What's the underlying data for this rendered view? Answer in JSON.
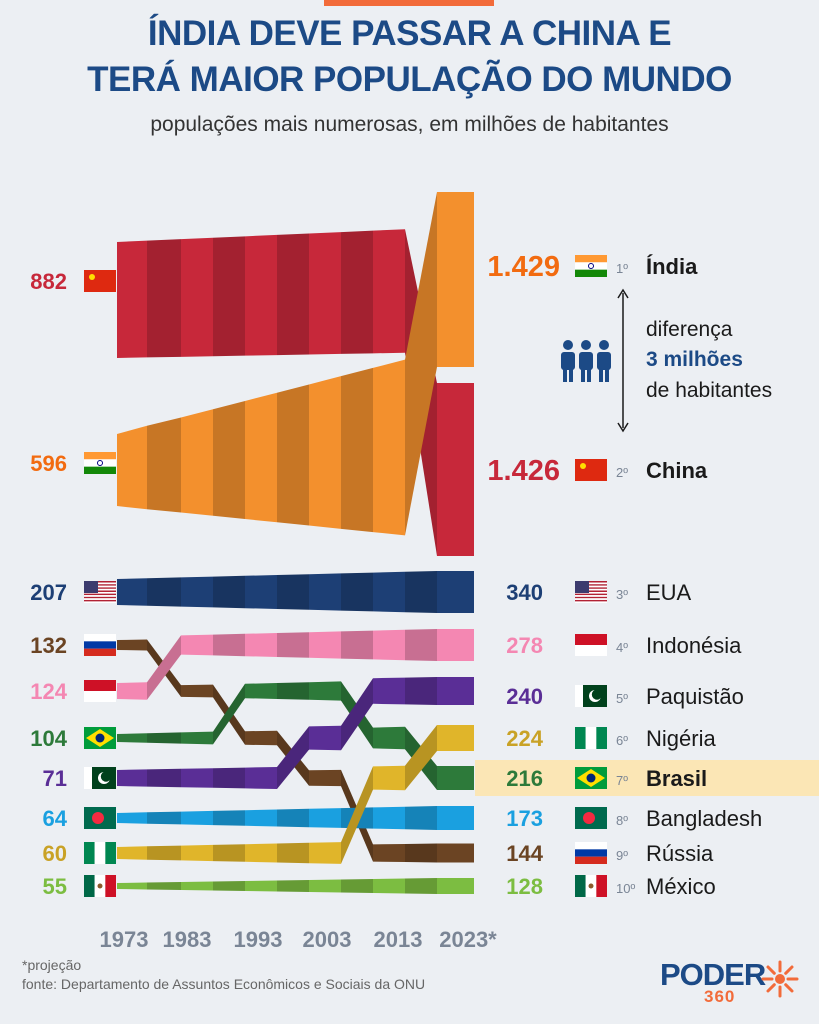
{
  "title_line1": "ÍNDIA DEVE PASSAR A CHINA E",
  "title_line2": "TERÁ MAIOR POPULAÇÃO DO MUNDO",
  "subtitle": "populações mais numerosas, em milhões de habitantes",
  "annotation": {
    "line1": "diferença",
    "line2": "3 milhões",
    "line3": "de habitantes"
  },
  "footnote": "*projeção",
  "source": "fonte: Departamento de Assuntos Econômicos e Sociais da ONU",
  "logo": {
    "word": "PODER",
    "number": "360"
  },
  "chart_data": {
    "type": "bump",
    "x": [
      "1973",
      "1983",
      "1993",
      "2003",
      "2013",
      "2023*"
    ],
    "units": "milhões de habitantes",
    "highlight": "Brasil",
    "series": [
      {
        "name": "China",
        "color": "#c7283a",
        "flag": "china",
        "start_label": "882",
        "end_label": "1.426",
        "rank_label": "2º",
        "ranks": [
          1,
          1,
          1,
          1,
          1,
          2
        ],
        "start": 882,
        "end": 1426
      },
      {
        "name": "Índia",
        "color": "#f3902d",
        "flag": "india",
        "start_label": "596",
        "end_label": "1.429",
        "rank_label": "1º",
        "ranks": [
          2,
          2,
          2,
          2,
          2,
          1
        ],
        "start": 596,
        "end": 1429
      },
      {
        "name": "EUA",
        "color": "#1d3f75",
        "flag": "usa",
        "start_label": "207",
        "end_label": "340",
        "rank_label": "3º",
        "ranks": [
          3,
          3,
          3,
          3,
          3,
          3
        ],
        "start": 207,
        "end": 340
      },
      {
        "name": "Rússia",
        "color": "#6b4423",
        "flag": "russia",
        "start_label": "132",
        "end_label": "144",
        "rank_label": "9º",
        "ranks": [
          4,
          5,
          6,
          7,
          9,
          9
        ],
        "start": 132,
        "end": 144
      },
      {
        "name": "Indonésia",
        "color": "#f487b2",
        "flag": "indonesia",
        "start_label": "124",
        "end_label": "278",
        "rank_label": "4º",
        "ranks": [
          5,
          4,
          4,
          4,
          4,
          4
        ],
        "start": 124,
        "end": 278
      },
      {
        "name": "Brasil",
        "color": "#2d7a3a",
        "flag": "brazil",
        "start_label": "104",
        "end_label": "216",
        "rank_label": "7º",
        "ranks": [
          6,
          6,
          5,
          5,
          6,
          7
        ],
        "start": 104,
        "end": 216
      },
      {
        "name": "Paquistão",
        "color": "#5a2e96",
        "flag": "pakistan",
        "start_label": "71",
        "end_label": "240",
        "rank_label": "5º",
        "ranks": [
          7,
          7,
          7,
          6,
          5,
          5
        ],
        "start": 71,
        "end": 240
      },
      {
        "name": "Bangladesh",
        "color": "#1aa0e0",
        "flag": "bangladesh",
        "start_label": "64",
        "end_label": "173",
        "rank_label": "8º",
        "ranks": [
          8,
          8,
          8,
          8,
          8,
          8
        ],
        "start": 64,
        "end": 173
      },
      {
        "name": "Nigéria",
        "color": "#e0b52a",
        "flag": "nigeria",
        "start_label": "60",
        "end_label": "224",
        "rank_label": "6º",
        "ranks": [
          9,
          9,
          9,
          9,
          7,
          6
        ],
        "start": 60,
        "end": 224
      },
      {
        "name": "México",
        "color": "#7cbd41",
        "flag": "mexico",
        "start_label": "55",
        "end_label": "128",
        "rank_label": "10º",
        "ranks": [
          10,
          10,
          10,
          10,
          10,
          10
        ],
        "start": 55,
        "end": 128
      }
    ],
    "label_colors": {
      "China": "#c7283a",
      "Índia": "#f26b10",
      "EUA": "#1d3f75",
      "Rússia": "#6b4423",
      "Indonésia": "#f487b2",
      "Brasil": "#2d7a3a",
      "Paquistão": "#5a2e96",
      "Bangladesh": "#1aa0e0",
      "Nigéria": "#c9a226",
      "México": "#7cbd41"
    },
    "colors": {
      "title": "#1c4a86",
      "highlight_bg": "#fbe6b5",
      "axis_text": "#7a8595"
    }
  }
}
